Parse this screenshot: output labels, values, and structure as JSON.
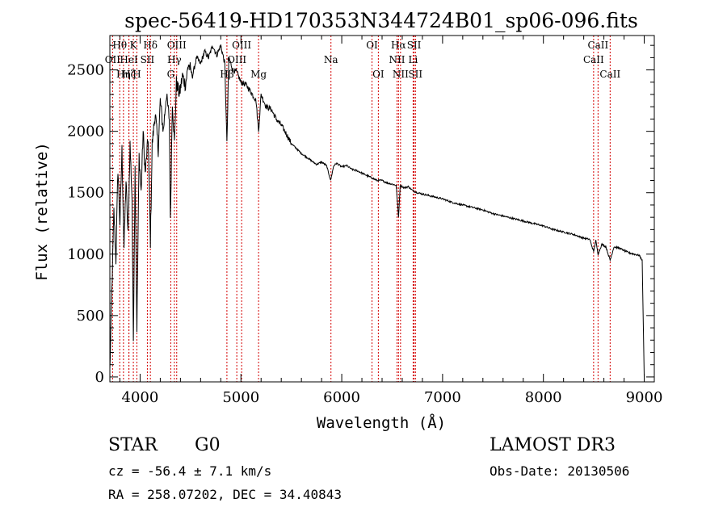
{
  "chart_data": {
    "type": "line",
    "title": "spec-56419-HD170353N344724B01_sp06-096.fits",
    "xlabel": "Wavelength (Å)",
    "ylabel": "Flux (relative)",
    "xlim": [
      3700,
      9100
    ],
    "ylim": [
      -40,
      2780
    ],
    "xticks": [
      4000,
      5000,
      6000,
      7000,
      8000,
      9000
    ],
    "yticks": [
      0,
      500,
      1000,
      1500,
      2000,
      2500
    ],
    "series": [
      {
        "name": "flux",
        "x": [
          3700,
          3720,
          3740,
          3760,
          3780,
          3800,
          3820,
          3840,
          3860,
          3880,
          3900,
          3920,
          3933,
          3950,
          3968,
          3990,
          4010,
          4030,
          4050,
          4080,
          4102,
          4120,
          4150,
          4180,
          4200,
          4230,
          4260,
          4290,
          4300,
          4320,
          4340,
          4360,
          4390,
          4420,
          4450,
          4480,
          4520,
          4560,
          4600,
          4640,
          4680,
          4720,
          4760,
          4800,
          4840,
          4861,
          4880,
          4920,
          4960,
          5000,
          5050,
          5100,
          5150,
          5175,
          5200,
          5250,
          5300,
          5350,
          5400,
          5450,
          5500,
          5550,
          5600,
          5650,
          5700,
          5750,
          5800,
          5850,
          5890,
          5920,
          5950,
          6000,
          6050,
          6100,
          6150,
          6200,
          6250,
          6300,
          6350,
          6400,
          6450,
          6500,
          6540,
          6563,
          6580,
          6620,
          6660,
          6700,
          6750,
          6800,
          6900,
          7000,
          7100,
          7200,
          7300,
          7400,
          7500,
          7600,
          7700,
          7800,
          7900,
          8000,
          8100,
          8200,
          8300,
          8400,
          8460,
          8498,
          8520,
          8542,
          8580,
          8620,
          8662,
          8700,
          8750,
          8800,
          8850,
          8900,
          8950,
          8980,
          9000
        ],
        "y": [
          50,
          700,
          1350,
          950,
          1700,
          1250,
          1850,
          1050,
          1600,
          1150,
          1900,
          1450,
          300,
          1700,
          400,
          1800,
          1500,
          2000,
          1650,
          1950,
          1100,
          1900,
          2150,
          1850,
          2250,
          2000,
          2300,
          2100,
          1250,
          2250,
          1900,
          2400,
          2300,
          2450,
          2380,
          2550,
          2450,
          2600,
          2550,
          2650,
          2600,
          2700,
          2620,
          2700,
          2550,
          1900,
          2600,
          2500,
          2480,
          2400,
          2380,
          2320,
          2250,
          2000,
          2300,
          2200,
          2180,
          2100,
          2050,
          1980,
          1900,
          1860,
          1820,
          1790,
          1760,
          1730,
          1750,
          1720,
          1600,
          1720,
          1740,
          1710,
          1720,
          1690,
          1680,
          1660,
          1640,
          1620,
          1600,
          1600,
          1580,
          1570,
          1560,
          1300,
          1560,
          1540,
          1550,
          1520,
          1500,
          1490,
          1470,
          1450,
          1420,
          1400,
          1380,
          1360,
          1330,
          1310,
          1290,
          1270,
          1250,
          1230,
          1200,
          1180,
          1160,
          1130,
          1120,
          1020,
          1110,
          1000,
          1080,
          1060,
          950,
          1060,
          1050,
          1030,
          1010,
          1000,
          990,
          950,
          0
        ]
      }
    ],
    "annotations": [
      {
        "label": "Hθ",
        "wavelength": 3798,
        "row": 1
      },
      {
        "label": "OII",
        "wavelength": 3727,
        "row": 2
      },
      {
        "label": "Hη",
        "wavelength": 3835,
        "row": 3
      },
      {
        "label": "K",
        "wavelength": 3933,
        "row": 1
      },
      {
        "label": "HeI",
        "wavelength": 3889,
        "row": 2
      },
      {
        "label": "Hζ",
        "wavelength": 3889,
        "row": 3
      },
      {
        "label": "H",
        "wavelength": 3968,
        "row": 3
      },
      {
        "label": "Hδ",
        "wavelength": 4102,
        "row": 1
      },
      {
        "label": "SII",
        "wavelength": 4072,
        "row": 2
      },
      {
        "label": "OIII",
        "wavelength": 4363,
        "row": 1
      },
      {
        "label": "Hγ",
        "wavelength": 4340,
        "row": 2
      },
      {
        "label": "G",
        "wavelength": 4304,
        "row": 3
      },
      {
        "label": "OIII",
        "wavelength": 5007,
        "row": 1
      },
      {
        "label": "OIII",
        "wavelength": 4959,
        "row": 2
      },
      {
        "label": "Hβ",
        "wavelength": 4861,
        "row": 3
      },
      {
        "label": "Mg",
        "wavelength": 5175,
        "row": 3
      },
      {
        "label": "Na",
        "wavelength": 5893,
        "row": 2
      },
      {
        "label": "OI",
        "wavelength": 6300,
        "row": 1
      },
      {
        "label": "OI",
        "wavelength": 6363,
        "row": 3
      },
      {
        "label": "Hα",
        "wavelength": 6563,
        "row": 1
      },
      {
        "label": "NII",
        "wavelength": 6548,
        "row": 2
      },
      {
        "label": "NII",
        "wavelength": 6583,
        "row": 3
      },
      {
        "label": "SII",
        "wavelength": 6717,
        "row": 1
      },
      {
        "label": "Li",
        "wavelength": 6708,
        "row": 2
      },
      {
        "label": "SII",
        "wavelength": 6731,
        "row": 3
      },
      {
        "label": "CaII",
        "wavelength": 8542,
        "row": 1
      },
      {
        "label": "CaII",
        "wavelength": 8498,
        "row": 2
      },
      {
        "label": "CaII",
        "wavelength": 8662,
        "row": 3
      }
    ]
  },
  "info": {
    "object_class": "STAR",
    "subclass": "G0",
    "survey": "LAMOST DR3",
    "cz": "cz = -56.4 ± 7.1 km/s",
    "obs_date": "Obs-Date: 20130506",
    "radec": "RA = 258.07202, DEC =  34.40843"
  }
}
